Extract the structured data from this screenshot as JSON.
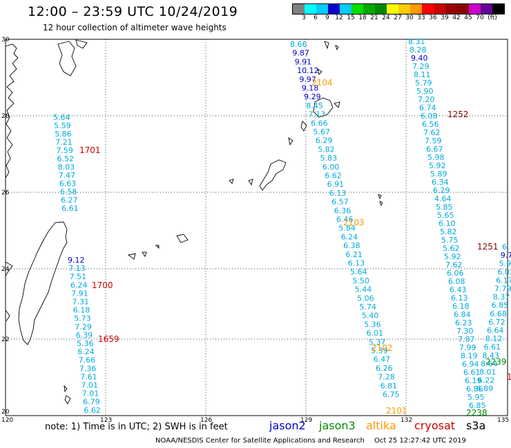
{
  "title": "12:00 – 23:59 UTC 10/24/2019",
  "subtitle": "12 hour collection of altimeter wave heights",
  "colorbar": {
    "colors": [
      "#808080",
      "#00ffff",
      "#00ccff",
      "#0000cc",
      "#00ccff",
      "#00dd00",
      "#00aa00",
      "#008800",
      "#ffff00",
      "#ffcc00",
      "#ff9900",
      "#ff0000",
      "#cc0000",
      "#990000",
      "#880000",
      "#cc00cc",
      "#660099",
      "#000000"
    ],
    "labels": [
      "3",
      "6",
      "9",
      "12",
      "15",
      "18",
      "21",
      "24",
      "27",
      "30",
      "33",
      "36",
      "39",
      "42",
      "45",
      "70",
      "(ft)"
    ]
  },
  "lat_labels": [
    "30",
    "28",
    "26",
    "24",
    "22",
    "20"
  ],
  "lon_labels": [
    "120",
    "123",
    "126",
    "129",
    "132",
    "135"
  ],
  "satellite_colors": {
    "jason2": "#0000cc",
    "jason3": "#008800",
    "altika": "#ff9900",
    "cryosat": "#cc0000",
    "s3a": "#000000"
  },
  "track_times": [
    {
      "text": "1701",
      "color": "#cc0000"
    },
    {
      "text": "1700",
      "color": "#cc0000"
    },
    {
      "text": "1659",
      "color": "#cc0000"
    },
    {
      "text": "2104",
      "color": "#ff9900"
    },
    {
      "text": "2103",
      "color": "#ff9900"
    },
    {
      "text": "2102",
      "color": "#ff9900"
    },
    {
      "text": "2101",
      "color": "#ff9900"
    },
    {
      "text": "1252",
      "color": "#880000"
    },
    {
      "text": "1251",
      "color": "#880000"
    },
    {
      "text": "2239",
      "color": "#008800"
    },
    {
      "text": "2238",
      "color": "#008800"
    },
    {
      "text": "1",
      "color": "#cc0000"
    }
  ],
  "tracks": {
    "west": [
      "5.64",
      "5.59",
      "5.86",
      "7.21",
      "7.59",
      "6.52",
      "8.03",
      "7.47",
      "6.63",
      "6.58",
      "6.27",
      "6.61"
    ],
    "taiwan": [
      "9.12",
      "7.13",
      "7.51",
      "6.24",
      "7.91",
      "7.31",
      "6.18",
      "5.73",
      "7.29",
      "6.39",
      "5.36",
      "6.24",
      "7.66",
      "7.36",
      "7.61",
      "7.01",
      "7.01",
      "6.79",
      "6.62"
    ],
    "altika_top": [
      "8.66",
      "9.87",
      "9.91",
      "10.12",
      "9.97",
      "9.18",
      "9.29",
      "8.45",
      "7.13",
      "6.66",
      "5.67",
      "6.29",
      "5.82",
      "5.83",
      "6.00",
      "6.62",
      "6.91",
      "6.13",
      "6.57",
      "6.36",
      "6.46",
      "5.84",
      "6.24",
      "6.38",
      "6.21",
      "6.13",
      "5.64",
      "5.50",
      "5.44",
      "5.06",
      "5.74",
      "5.40",
      "5.36",
      "6.01",
      "5.37",
      "5.39",
      "6.47",
      "6.26",
      "7.28",
      "6.81",
      "6.75"
    ],
    "right": [
      "8.31",
      "8.28",
      "9.40",
      "7.29",
      "8.11",
      "5.79",
      "5.90",
      "7.20",
      "6.74",
      "6.08",
      "6.56",
      "7.62",
      "7.59",
      "6.67",
      "5.98",
      "5.92",
      "5.89",
      "6.34",
      "6.29",
      "4.64",
      "5.85",
      "5.65",
      "6.10",
      "5.82",
      "5.75",
      "5.62",
      "5.92",
      "7.62",
      "6.06",
      "6.08",
      "6.43",
      "6.13",
      "6.18",
      "6.84",
      "6.23",
      "7.30",
      "7.87",
      "7.99",
      "8.19",
      "6.94",
      "6.61",
      "6.19",
      "6.86",
      "5.95",
      "6.85"
    ],
    "far_right": [
      "6.",
      "9.7",
      "5.97",
      "6.02",
      "6.17",
      "7.79",
      "8.37",
      "6.85",
      "6.68",
      "6.72",
      "6.64",
      "8.12",
      "6.61",
      "8.43",
      "8.64",
      "8.01",
      "6.22",
      "6.89"
    ]
  },
  "legend": {
    "note": "note: 1) Time is in UTC; 2) SWH is in feet",
    "jason2": "jason2",
    "jason3": "jason3",
    "altika": "altika",
    "cryosat": "cryosat",
    "s3a": "s3a"
  },
  "credit": "NOAA/NESDIS Center for Satellite Applications and Research",
  "timestamp": "Oct 25 12:27:42 UTC 2019"
}
